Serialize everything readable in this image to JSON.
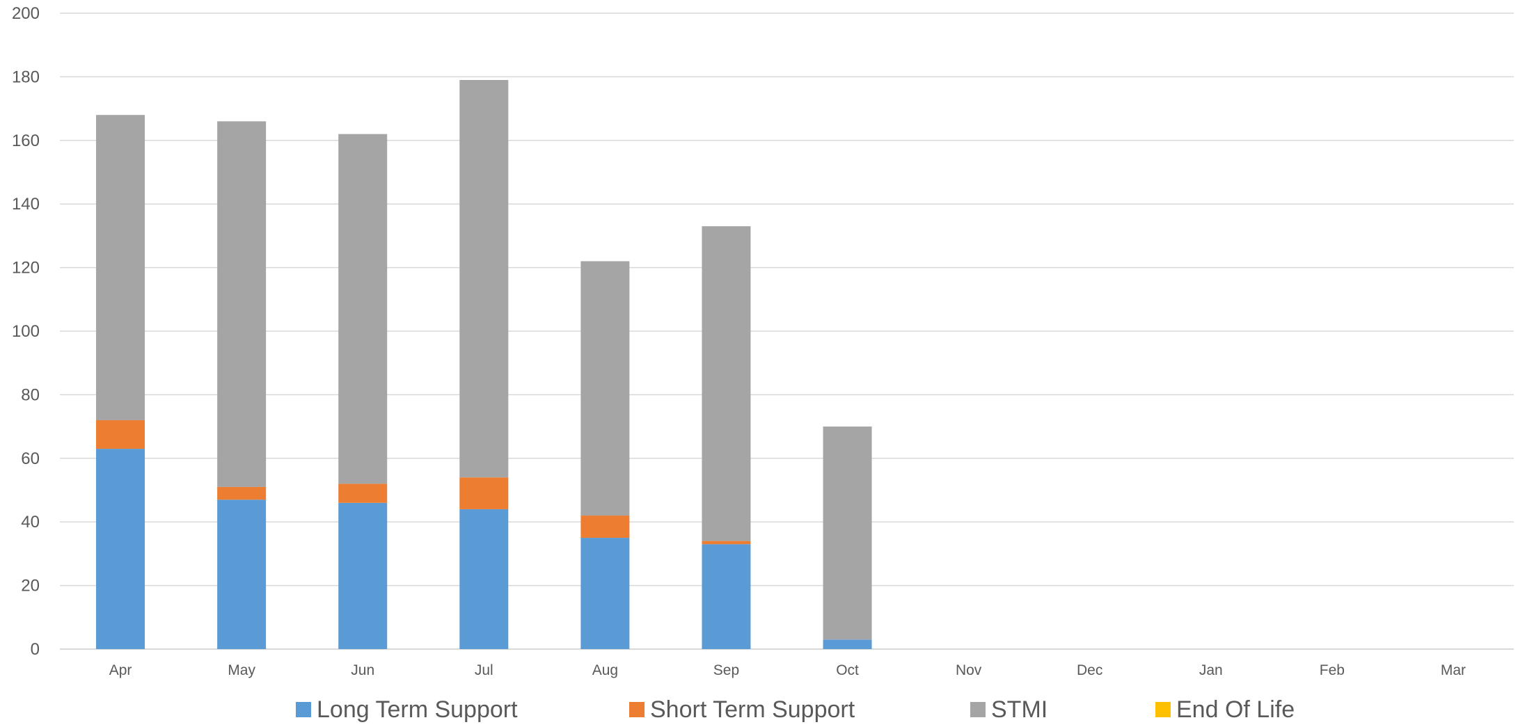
{
  "chart_data": {
    "type": "bar",
    "stacked": true,
    "categories": [
      "Apr",
      "May",
      "Jun",
      "Jul",
      "Aug",
      "Sep",
      "Oct",
      "Nov",
      "Dec",
      "Jan",
      "Feb",
      "Mar"
    ],
    "series": [
      {
        "name": "Long Term Support",
        "color": "#5b9bd5",
        "values": [
          63,
          47,
          46,
          44,
          35,
          33,
          3,
          0,
          0,
          0,
          0,
          0
        ]
      },
      {
        "name": "Short Term Support",
        "color": "#ed7d31",
        "values": [
          9,
          4,
          6,
          10,
          7,
          1,
          0,
          0,
          0,
          0,
          0,
          0
        ]
      },
      {
        "name": "STMI",
        "color": "#a5a5a5",
        "values": [
          96,
          115,
          110,
          125,
          80,
          99,
          67,
          0,
          0,
          0,
          0,
          0
        ]
      },
      {
        "name": "End Of Life",
        "color": "#ffc000",
        "values": [
          0,
          0,
          0,
          0,
          0,
          0,
          0,
          0,
          0,
          0,
          0,
          0
        ]
      }
    ],
    "yticks": [
      "0",
      "20",
      "40",
      "60",
      "80",
      "100",
      "120",
      "140",
      "160",
      "180",
      "200"
    ],
    "ylim": [
      0,
      200
    ],
    "ystep": 20,
    "title": "",
    "xlabel": "",
    "ylabel": "",
    "grid": true,
    "legend_position": "bottom"
  }
}
